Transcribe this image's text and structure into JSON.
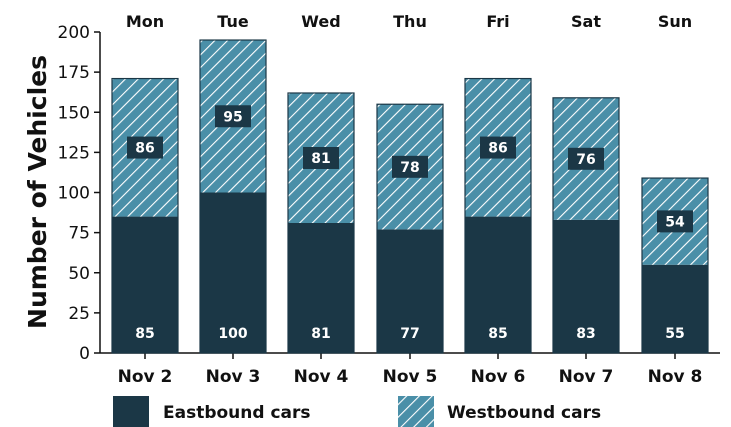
{
  "chart_data": {
    "type": "bar",
    "stacked": true,
    "categories": [
      "Nov 2",
      "Nov 3",
      "Nov 4",
      "Nov 5",
      "Nov 6",
      "Nov 7",
      "Nov 8"
    ],
    "top_labels": [
      "Mon",
      "Tue",
      "Wed",
      "Thu",
      "Fri",
      "Sat",
      "Sun"
    ],
    "series": [
      {
        "name": "Eastbound cars",
        "values": [
          85,
          100,
          81,
          77,
          85,
          83,
          55
        ],
        "color": "#1b3746",
        "pattern": "solid"
      },
      {
        "name": "Westbound cars",
        "values": [
          86,
          95,
          81,
          78,
          86,
          76,
          54
        ],
        "color": "#4a8fa8",
        "pattern": "diagonal-hatch"
      }
    ],
    "title": "",
    "xlabel": "",
    "ylabel": "Number of Vehicles",
    "ylim": [
      0,
      200
    ],
    "yticks": [
      0,
      25,
      50,
      75,
      100,
      125,
      150,
      175,
      200
    ],
    "grid": false,
    "legend": "bottom",
    "label_box_color": "#1b3746"
  }
}
